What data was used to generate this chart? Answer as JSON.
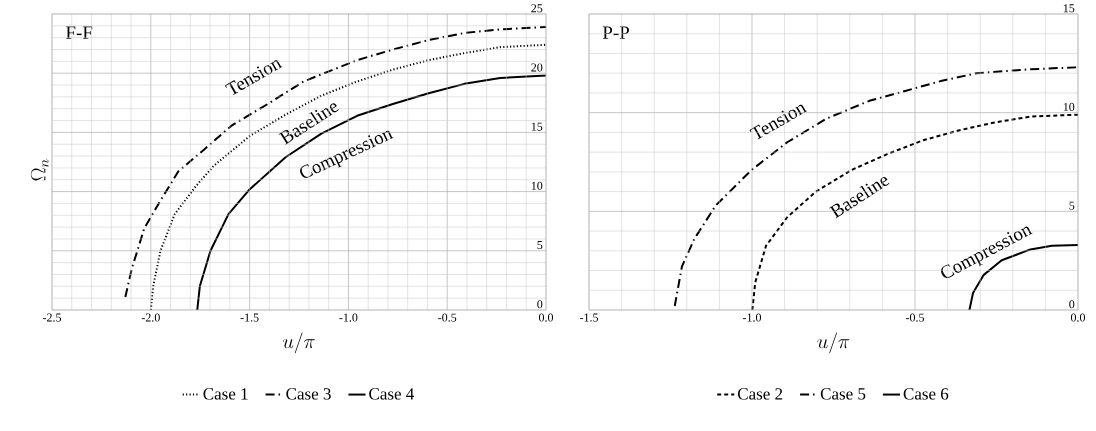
{
  "chart_data": [
    {
      "type": "line",
      "xlabel": "u/\\pi",
      "ylabel": "\\Omega_n",
      "annotations": [
        "F-F",
        "Tension",
        "Baseline",
        "Compression"
      ],
      "xlim": [
        -2.5,
        0
      ],
      "ylim": [
        0,
        25
      ],
      "xticks": [
        {
          "value": -2.5,
          "label": "-2.5"
        },
        {
          "value": -2.0,
          "label": "-2.0"
        },
        {
          "value": -1.5,
          "label": "-1.5"
        },
        {
          "value": -1.0,
          "label": "-1.0"
        },
        {
          "value": -0.5,
          "label": "-0.5"
        },
        {
          "value": 0,
          "label": "0.0"
        }
      ],
      "yticks": [
        0,
        5,
        10,
        15,
        20,
        25
      ],
      "grid": true,
      "legend": "bottom",
      "marker": "none",
      "series": [
        {
          "name": "Case 1",
          "color": "#000000",
          "line_style": "dotted",
          "x": [
            -2.0,
            -1.988,
            -1.951,
            -1.879,
            -1.77,
            -1.68,
            -1.499,
            -1.318,
            -1.137,
            -0.956,
            -0.775,
            -0.594,
            -0.413,
            -0.232,
            0
          ],
          "values": [
            0,
            2.0,
            5.0,
            8.1,
            10.5,
            12.2,
            14.7,
            16.5,
            18.1,
            19.3,
            20.3,
            21.1,
            21.7,
            22.2,
            22.4
          ]
        },
        {
          "name": "Case 3",
          "color": "#000000",
          "line_style": "dashdotted",
          "x": [
            -2.129,
            -2.096,
            -2.033,
            -1.96,
            -1.861,
            -1.734,
            -1.589,
            -1.408,
            -1.227,
            -0.956,
            -0.775,
            -0.594,
            -0.413,
            -0.232,
            0
          ],
          "values": [
            1.1,
            3.5,
            6.9,
            9.0,
            11.7,
            13.5,
            15.6,
            17.4,
            19.3,
            21.1,
            22.0,
            22.8,
            23.4,
            23.7,
            23.9
          ]
        },
        {
          "name": "Case 4",
          "color": "#000000",
          "line_style": "solid",
          "x": [
            -1.765,
            -1.752,
            -1.698,
            -1.607,
            -1.499,
            -1.318,
            -1.137,
            -0.956,
            -0.775,
            -0.594,
            -0.413,
            -0.232,
            0
          ],
          "values": [
            0,
            2.0,
            5.0,
            8.1,
            10.2,
            12.9,
            14.9,
            16.4,
            17.4,
            18.3,
            19.1,
            19.6,
            19.8
          ]
        }
      ]
    },
    {
      "type": "line",
      "xlabel": "u/\\pi",
      "annotations": [
        "P-P",
        "Tension",
        "Baseline",
        "Compression"
      ],
      "xlim": [
        -1.5,
        0
      ],
      "ylim": [
        0,
        15
      ],
      "xticks": [
        {
          "value": -1.5,
          "label": "-1.5"
        },
        {
          "value": -1.0,
          "label": "-1.0"
        },
        {
          "value": -0.5,
          "label": "-0.5"
        },
        {
          "value": 0,
          "label": "0.0"
        }
      ],
      "yticks": [
        0,
        5,
        10,
        15
      ],
      "grid": true,
      "legend": "bottom",
      "marker": "none",
      "series": [
        {
          "name": "Case 2",
          "color": "#000000",
          "line_style": "dashed",
          "x": [
            -0.999,
            -0.99,
            -0.957,
            -0.892,
            -0.804,
            -0.694,
            -0.585,
            -0.475,
            -0.366,
            -0.256,
            -0.146,
            0
          ],
          "values": [
            0,
            1.4,
            3.25,
            4.7,
            6.0,
            7.1,
            7.9,
            8.6,
            9.1,
            9.5,
            9.8,
            9.9
          ]
        },
        {
          "name": "Case 5",
          "color": "#000000",
          "line_style": "dashdotted",
          "x": [
            -1.237,
            -1.215,
            -1.177,
            -1.111,
            -1.001,
            -0.892,
            -0.771,
            -0.64,
            -0.53,
            -0.421,
            -0.311,
            -0.146,
            0
          ],
          "values": [
            0.2,
            2.2,
            3.6,
            5.3,
            7.1,
            8.5,
            9.7,
            10.6,
            11.1,
            11.6,
            12.0,
            12.2,
            12.3
          ]
        },
        {
          "name": "Case 6",
          "color": "#000000",
          "line_style": "solid",
          "x": [
            -0.333,
            -0.322,
            -0.289,
            -0.234,
            -0.146,
            -0.08,
            0
          ],
          "values": [
            0,
            0.86,
            1.78,
            2.52,
            3.07,
            3.25,
            3.29
          ]
        }
      ]
    }
  ]
}
